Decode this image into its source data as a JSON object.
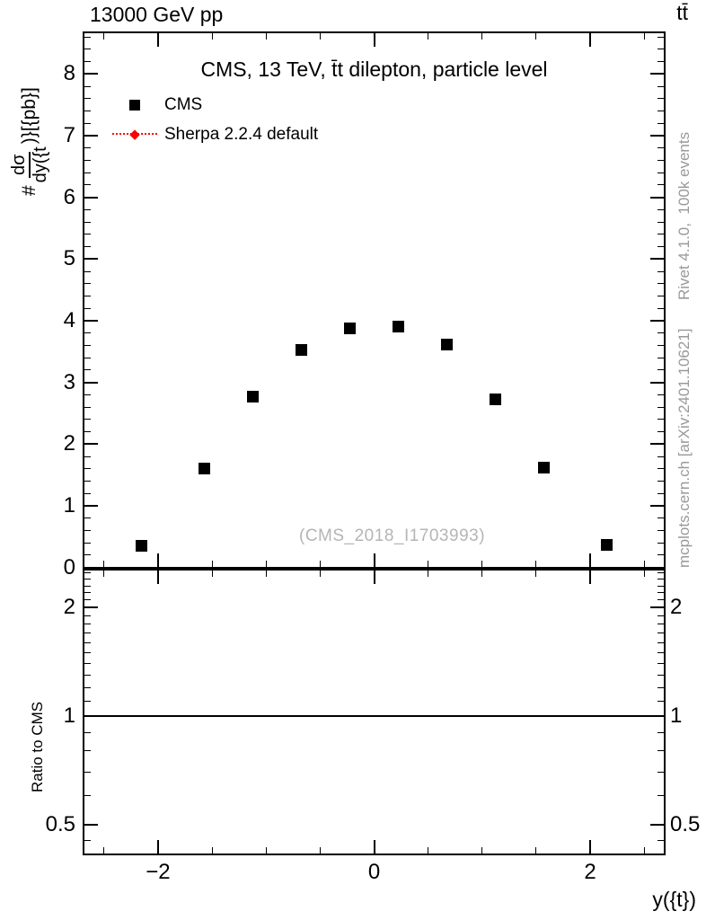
{
  "header": {
    "beam_label": "13000 GeV pp",
    "process_label": "tt̄"
  },
  "main": {
    "title": "CMS, 13 TeV, t̄t dilepton, particle level",
    "watermark": "(CMS_2018_I1703993)",
    "ylabel": {
      "prefix": "#",
      "numerator": "dσ",
      "denominator": "dy({t",
      "suffix": ")}[{pb}]"
    },
    "legend": [
      {
        "label": "CMS",
        "marker": "black-filled-square",
        "color": "#000000"
      },
      {
        "label": "Sherpa 2.2.4 default",
        "marker": "red-diamond-dotted-line",
        "color": "#ff0000"
      }
    ]
  },
  "ratio": {
    "label": "Ratio to CMS",
    "reference_line": 1
  },
  "side": {
    "rivet": "Rivet 4.1.0,  100k events",
    "mcplots": "mcplots.cern.ch [arXiv:2401.10621]"
  },
  "xaxis": {
    "label": "y({t})",
    "major_ticks": [
      -2,
      0,
      2
    ],
    "major_labels": [
      "−2",
      "0",
      "2"
    ],
    "minor_ticks": [
      -2.5,
      -1.5,
      -1,
      -0.5,
      0.5,
      1,
      1.5,
      2.5
    ],
    "range": [
      -2.7,
      2.7
    ]
  },
  "yaxis_main": {
    "major_ticks": [
      0,
      1,
      2,
      3,
      4,
      5,
      6,
      7,
      8
    ],
    "major_labels": [
      "0",
      "1",
      "2",
      "3",
      "4",
      "5",
      "6",
      "7",
      "8"
    ],
    "minor_step": 0.2,
    "range": [
      0,
      8.7
    ]
  },
  "yaxis_ratio": {
    "scale": "log",
    "major_ticks": [
      0.5,
      1,
      2
    ],
    "major_labels": [
      "0.5",
      "1",
      "2"
    ],
    "minor_ticks": [
      0.45,
      0.6,
      0.7,
      0.8,
      0.9,
      1.1,
      1.2,
      1.3,
      1.4,
      1.5,
      1.6,
      1.7,
      1.8,
      1.9,
      2.1,
      2.2,
      2.3,
      2.4,
      2.5
    ],
    "range": [
      0.41,
      2.56
    ]
  },
  "chart_data": {
    "type": "scatter",
    "title": "CMS, 13 TeV, t̄t dilepton, particle level",
    "xlabel": "y({t})",
    "ylabel": "#dσ/dy({t})}[{pb}]",
    "xlim": [
      -2.7,
      2.7
    ],
    "ylim": [
      0,
      8.7
    ],
    "grid": false,
    "legend_position": "top-left",
    "series": [
      {
        "name": "CMS",
        "marker": "filled-square",
        "color": "#000000",
        "x": [
          -2.15,
          -1.575,
          -1.125,
          -0.675,
          -0.225,
          0.225,
          0.675,
          1.125,
          1.575,
          2.15
        ],
        "y": [
          0.35,
          1.61,
          2.77,
          3.53,
          3.87,
          3.9,
          3.61,
          2.73,
          1.62,
          0.36
        ]
      },
      {
        "name": "Sherpa 2.2.4 default",
        "marker": "diamond-dotted-line",
        "color": "#ff0000",
        "x": [],
        "y": []
      }
    ],
    "ratio_panel": {
      "ylabel": "Ratio to CMS",
      "yscale": "log",
      "ylim": [
        0.41,
        2.56
      ],
      "yticks": [
        0.5,
        1,
        2
      ],
      "reference_line": 1,
      "series": []
    }
  }
}
